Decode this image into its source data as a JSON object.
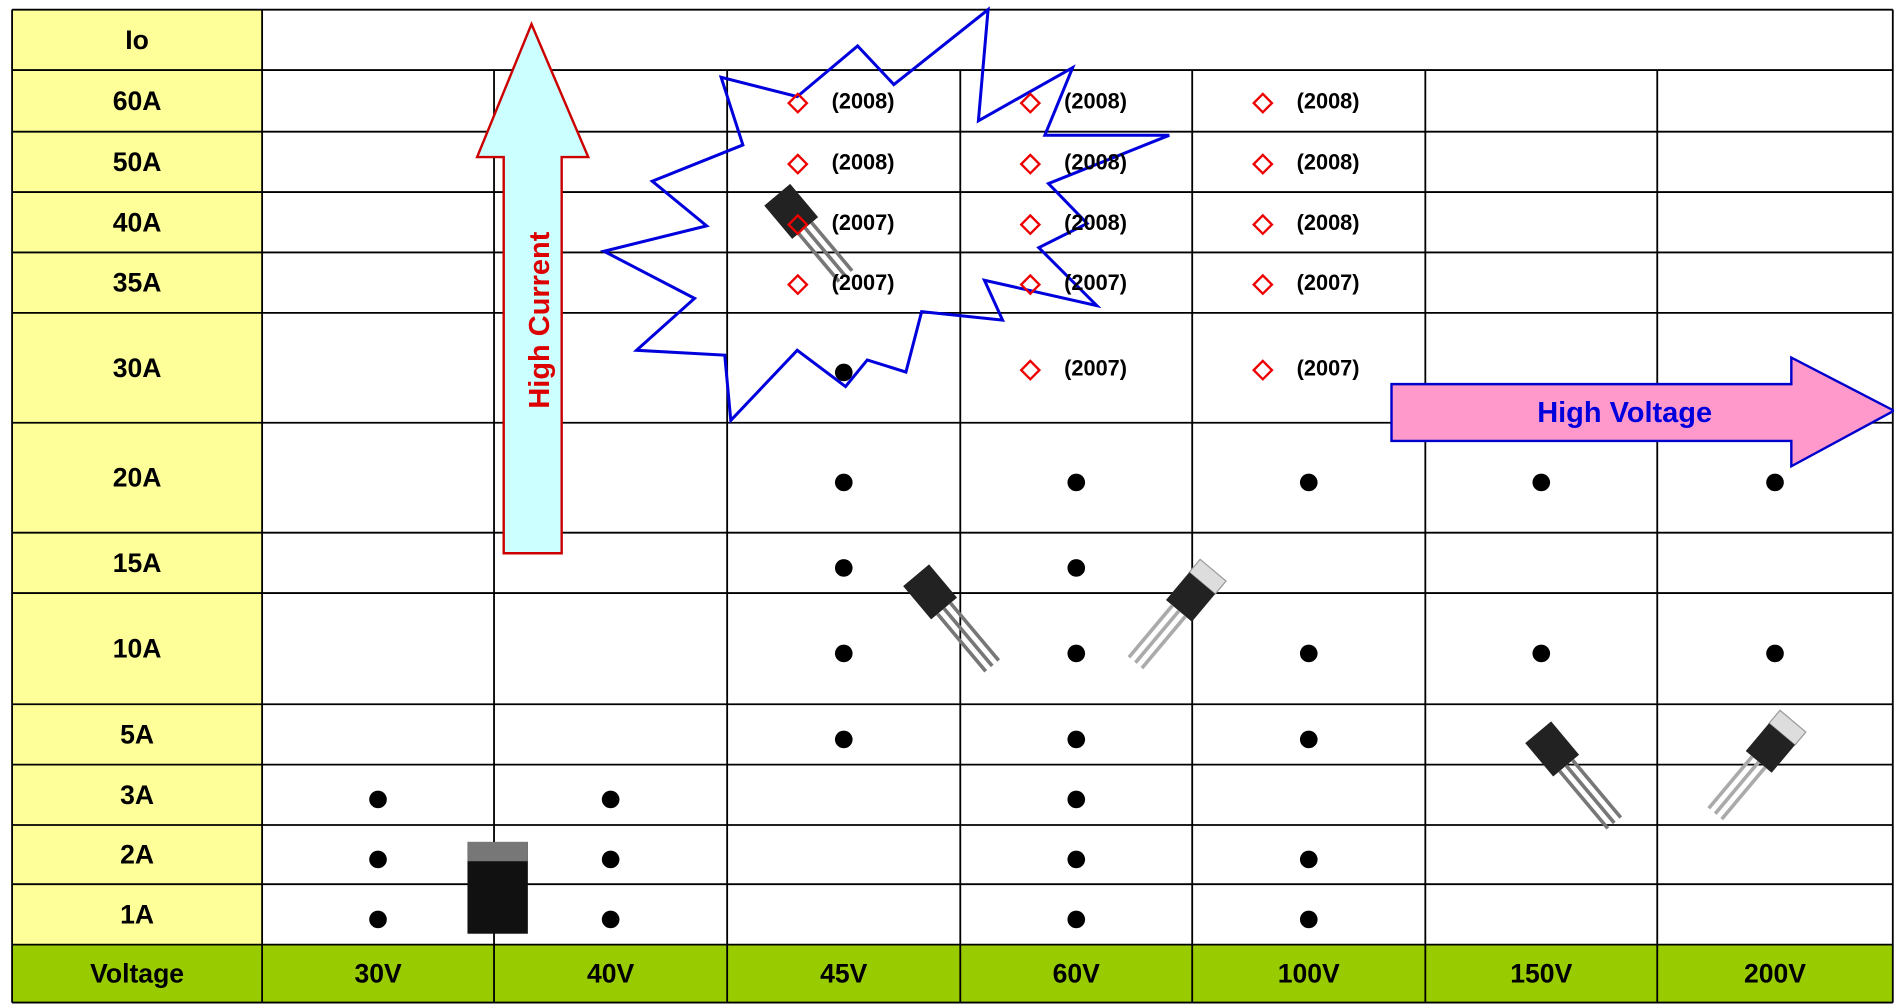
{
  "table": {
    "header": "Io",
    "footer_label": "Voltage",
    "columns": [
      "30V",
      "40V",
      "45V",
      "60V",
      "100V",
      "150V",
      "200V"
    ],
    "rows": [
      {
        "label": "60A",
        "cells": [
          null,
          null,
          {
            "symbol": "◇",
            "text": "(2008)"
          },
          {
            "symbol": "◇",
            "text": "(2008)"
          },
          {
            "symbol": "◇",
            "text": "(2008)"
          },
          null,
          null
        ]
      },
      {
        "label": "50A",
        "cells": [
          null,
          null,
          {
            "symbol": "◇",
            "text": "(2008)"
          },
          {
            "symbol": "◇",
            "text": "(2008)"
          },
          {
            "symbol": "◇",
            "text": "(2008)"
          },
          null,
          null
        ]
      },
      {
        "label": "40A",
        "cells": [
          null,
          null,
          {
            "symbol": "◇",
            "text": "(2007)"
          },
          {
            "symbol": "◇",
            "text": "(2008)"
          },
          {
            "symbol": "◇",
            "text": "(2008)"
          },
          null,
          null
        ]
      },
      {
        "label": "35A",
        "cells": [
          null,
          null,
          {
            "symbol": "◇",
            "text": "(2007)"
          },
          {
            "symbol": "◇",
            "text": "(2007)"
          },
          {
            "symbol": "◇",
            "text": "(2007)"
          },
          null,
          null
        ]
      },
      {
        "label": "30A",
        "cells": [
          null,
          null,
          {
            "symbol": "●"
          },
          {
            "symbol": "◇",
            "text": "(2007)"
          },
          {
            "symbol": "◇",
            "text": "(2007)"
          },
          null,
          null
        ]
      },
      {
        "label": "20A",
        "cells": [
          null,
          null,
          {
            "symbol": "●"
          },
          {
            "symbol": "●"
          },
          {
            "symbol": "●"
          },
          {
            "symbol": "●"
          },
          {
            "symbol": "●"
          }
        ]
      },
      {
        "label": "15A",
        "cells": [
          null,
          null,
          {
            "symbol": "●"
          },
          {
            "symbol": "●"
          },
          null,
          null,
          null
        ]
      },
      {
        "label": "10A",
        "cells": [
          null,
          null,
          {
            "symbol": "●"
          },
          {
            "symbol": "●"
          },
          {
            "symbol": "●"
          },
          {
            "symbol": "●"
          },
          {
            "symbol": "●"
          }
        ]
      },
      {
        "label": "5A",
        "cells": [
          null,
          null,
          {
            "symbol": "●"
          },
          {
            "symbol": "●"
          },
          {
            "symbol": "●"
          },
          null,
          null
        ]
      },
      {
        "label": "3A",
        "cells": [
          {
            "symbol": "●"
          },
          {
            "symbol": "●"
          },
          null,
          {
            "symbol": "●"
          },
          null,
          null,
          null
        ]
      },
      {
        "label": "2A",
        "cells": [
          {
            "symbol": "●"
          },
          {
            "symbol": "●"
          },
          null,
          {
            "symbol": "●"
          },
          {
            "symbol": "●"
          },
          null,
          null
        ]
      },
      {
        "label": "1A",
        "cells": [
          {
            "symbol": "●"
          },
          {
            "symbol": "●"
          },
          null,
          {
            "symbol": "●"
          },
          {
            "symbol": "●"
          },
          null,
          null
        ]
      }
    ]
  },
  "annotations": {
    "high_current": "High Current",
    "high_voltage": "High Voltage"
  }
}
